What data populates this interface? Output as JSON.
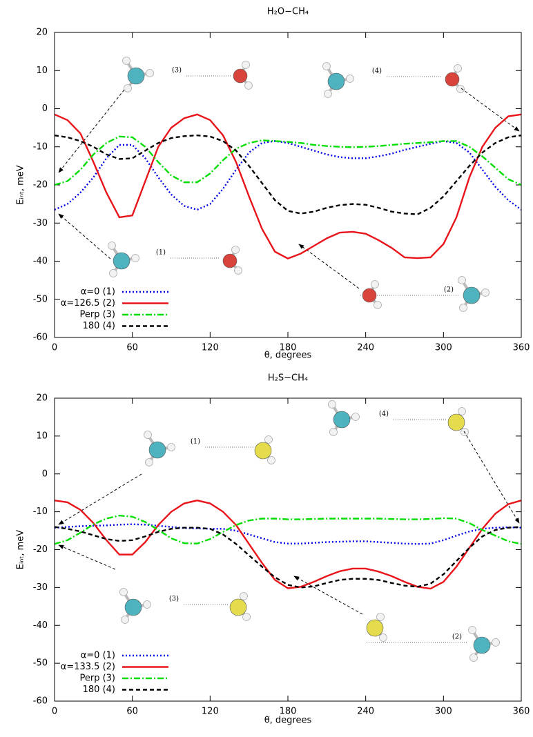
{
  "chart_data": [
    {
      "type": "line",
      "title": "H₂O−CH₄",
      "xlabel": "θ, degrees",
      "ylabel": "Eᵢₙₜ, meV",
      "xlim": [
        0,
        360
      ],
      "ylim": [
        -60,
        20
      ],
      "xticks": [
        0,
        60,
        120,
        180,
        240,
        300,
        360
      ],
      "yticks": [
        -60,
        -50,
        -40,
        -30,
        -20,
        -10,
        0,
        10,
        20
      ],
      "legend": "lower left",
      "annotations": [
        "(3)",
        "(4)",
        "(1)",
        "(2)"
      ],
      "x": [
        0,
        10,
        20,
        30,
        40,
        50,
        60,
        70,
        80,
        90,
        100,
        110,
        120,
        130,
        140,
        150,
        160,
        170,
        180,
        190,
        200,
        210,
        220,
        230,
        240,
        250,
        260,
        270,
        280,
        290,
        300,
        310,
        320,
        330,
        340,
        350,
        360
      ],
      "series": [
        {
          "name": "α=0 (1)",
          "color": "#0000ee",
          "linestyle": "dotted",
          "values": [
            -26.5,
            -25,
            -22,
            -18,
            -13,
            -9.5,
            -9.5,
            -13,
            -18,
            -22.5,
            -25.5,
            -26.5,
            -25,
            -21,
            -16,
            -11.5,
            -9,
            -8.5,
            -9,
            -10,
            -11,
            -12,
            -12.7,
            -13,
            -13,
            -12.5,
            -11.8,
            -10.8,
            -10,
            -9.2,
            -8.5,
            -9,
            -11.5,
            -16,
            -20.5,
            -24,
            -26.5
          ]
        },
        {
          "name": "α=126.5 (2)",
          "color": "#e8141a",
          "linestyle": "solid",
          "values": [
            -1.5,
            -3,
            -6.5,
            -14,
            -22,
            -28.5,
            -28,
            -19,
            -10,
            -5,
            -2.5,
            -1.5,
            -3,
            -7,
            -14,
            -23,
            -31.5,
            -37.5,
            -39.3,
            -38,
            -36,
            -34,
            -32.5,
            -32.3,
            -32.8,
            -34.5,
            -36.5,
            -39,
            -39.2,
            -39,
            -35.5,
            -28.5,
            -18,
            -10,
            -5,
            -2,
            -1.5
          ]
        },
        {
          "name": "Perp (3)",
          "color": "#00dd00",
          "linestyle": "dashdot",
          "values": [
            -20,
            -19,
            -16,
            -12,
            -9,
            -7.3,
            -7.5,
            -10,
            -14,
            -17.5,
            -19.3,
            -19.3,
            -17,
            -13.5,
            -10.5,
            -9,
            -8.3,
            -8.5,
            -8.7,
            -9,
            -9.5,
            -9.8,
            -10,
            -10.1,
            -10,
            -9.8,
            -9.5,
            -9.2,
            -9,
            -8.8,
            -8.5,
            -8.5,
            -10,
            -12.5,
            -15.5,
            -18.5,
            -20
          ]
        },
        {
          "name": "180 (4)",
          "color": "#000000",
          "linestyle": "dashed",
          "values": [
            -7,
            -7.5,
            -8.5,
            -10,
            -12,
            -13.2,
            -13,
            -11,
            -9,
            -7.7,
            -7.2,
            -7,
            -7.3,
            -8.5,
            -11,
            -15,
            -19.5,
            -24,
            -26.8,
            -27.5,
            -27,
            -26,
            -25.3,
            -25,
            -25.2,
            -26,
            -27,
            -27.5,
            -27.7,
            -26,
            -23,
            -19,
            -15,
            -11.5,
            -9,
            -7.5,
            -7
          ]
        }
      ]
    },
    {
      "type": "line",
      "title": "H₂S−CH₄",
      "xlabel": "θ, degrees",
      "ylabel": "Eᵢₙₜ, meV",
      "xlim": [
        0,
        360
      ],
      "ylim": [
        -60,
        20
      ],
      "xticks": [
        0,
        60,
        120,
        180,
        240,
        300,
        360
      ],
      "yticks": [
        -60,
        -50,
        -40,
        -30,
        -20,
        -10,
        0,
        10,
        20
      ],
      "legend": "lower left",
      "annotations": [
        "(1)",
        "(4)",
        "(3)",
        "(2)"
      ],
      "x": [
        0,
        10,
        20,
        30,
        40,
        50,
        60,
        70,
        80,
        90,
        100,
        110,
        120,
        130,
        140,
        150,
        160,
        170,
        180,
        190,
        200,
        210,
        220,
        230,
        240,
        250,
        260,
        270,
        280,
        290,
        300,
        310,
        320,
        330,
        340,
        350,
        360
      ],
      "series": [
        {
          "name": "α=0 (1)",
          "color": "#0000ee",
          "linestyle": "dotted",
          "values": [
            -14.2,
            -14,
            -13.8,
            -13.7,
            -13.6,
            -13.4,
            -13.3,
            -13.4,
            -13.7,
            -14,
            -14.3,
            -14.4,
            -14.5,
            -14.5,
            -15,
            -16,
            -17,
            -18,
            -18.4,
            -18.4,
            -18.2,
            -18,
            -17.9,
            -17.8,
            -17.8,
            -18,
            -18.2,
            -18.4,
            -18.5,
            -18.4,
            -17.5,
            -16.3,
            -15.2,
            -14.5,
            -14.2,
            -14.1,
            -14.2
          ]
        },
        {
          "name": "α=133.5 (2)",
          "color": "#e8141a",
          "linestyle": "solid",
          "values": [
            -7,
            -7.5,
            -9.5,
            -13,
            -17.5,
            -21.3,
            -21.3,
            -18,
            -13.5,
            -10,
            -7.8,
            -7,
            -7.8,
            -10,
            -13.5,
            -18.5,
            -23.5,
            -28,
            -30.2,
            -29.8,
            -28.5,
            -27,
            -25.7,
            -25,
            -25,
            -25.8,
            -27,
            -28.5,
            -29.8,
            -30.3,
            -28.5,
            -24.5,
            -19.5,
            -14.5,
            -10.5,
            -8,
            -7
          ]
        },
        {
          "name": "Perp (3)",
          "color": "#00dd00",
          "linestyle": "dashdot",
          "values": [
            -18.5,
            -17.5,
            -15.5,
            -13.3,
            -11.8,
            -11,
            -11.3,
            -12.7,
            -14.8,
            -17,
            -18.3,
            -18.4,
            -17.2,
            -15.3,
            -13.5,
            -12.3,
            -11.8,
            -11.8,
            -12,
            -12,
            -11.9,
            -11.8,
            -11.8,
            -11.8,
            -11.8,
            -11.8,
            -11.9,
            -12,
            -12,
            -11.9,
            -11.7,
            -11.8,
            -13,
            -14.8,
            -16.3,
            -17.8,
            -18.5
          ]
        },
        {
          "name": "180 (4)",
          "color": "#000000",
          "linestyle": "dashed",
          "values": [
            -14,
            -14.5,
            -15.2,
            -16.2,
            -17.2,
            -17.7,
            -17.5,
            -16.5,
            -15.3,
            -14.5,
            -14.2,
            -14.2,
            -14.5,
            -16,
            -18.5,
            -21.5,
            -24.5,
            -27.3,
            -29.3,
            -30,
            -29.7,
            -28.8,
            -28,
            -27.7,
            -27.7,
            -28,
            -28.8,
            -29.5,
            -29.8,
            -29,
            -26.5,
            -23,
            -19.5,
            -16.5,
            -14.8,
            -14.2,
            -14
          ]
        }
      ]
    }
  ]
}
